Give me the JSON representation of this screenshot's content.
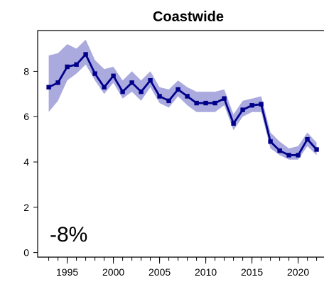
{
  "chart_data": {
    "type": "line",
    "title": "Coastwide",
    "xlabel": "",
    "ylabel": "",
    "annotation": "-8%",
    "xlim": [
      1991.8,
      2022.8
    ],
    "ylim": [
      -0.2,
      9.8
    ],
    "x_ticks": [
      1995,
      2000,
      2005,
      2010,
      2015,
      2020
    ],
    "x_minor_ticks": [
      1993,
      1994,
      1995,
      1996,
      1997,
      1998,
      1999,
      2000,
      2001,
      2002,
      2003,
      2004,
      2005,
      2006,
      2007,
      2008,
      2009,
      2010,
      2011,
      2012,
      2013,
      2014,
      2015,
      2016,
      2017,
      2018,
      2019,
      2020,
      2021,
      2022
    ],
    "y_ticks": [
      0,
      2,
      4,
      6,
      8
    ],
    "grid": false,
    "legend": "none",
    "colors": {
      "line": "#00008b",
      "band": "#aaaade"
    },
    "series": [
      {
        "x": [
          1993,
          1994,
          1995,
          1996,
          1997,
          1998,
          1999,
          2000,
          2001,
          2002,
          2003,
          2004,
          2005,
          2006,
          2007,
          2008,
          2009,
          2010,
          2011,
          2012,
          2013,
          2014,
          2015,
          2016,
          2017,
          2018,
          2019,
          2020,
          2021,
          2022
        ],
        "values": [
          7.3,
          7.5,
          8.2,
          8.3,
          8.75,
          7.9,
          7.3,
          7.8,
          7.1,
          7.5,
          7.1,
          7.6,
          6.9,
          6.7,
          7.2,
          6.9,
          6.6,
          6.6,
          6.6,
          6.8,
          5.7,
          6.3,
          6.5,
          6.55,
          4.9,
          4.5,
          4.3,
          4.3,
          5.0,
          4.55
        ],
        "lower": [
          6.2,
          6.7,
          7.6,
          7.9,
          8.3,
          7.6,
          7.0,
          7.5,
          6.8,
          7.1,
          6.7,
          7.3,
          6.6,
          6.4,
          6.9,
          6.5,
          6.2,
          6.2,
          6.2,
          6.5,
          5.4,
          6.0,
          6.2,
          6.2,
          4.6,
          4.3,
          4.1,
          4.1,
          4.7,
          4.3
        ],
        "upper": [
          8.7,
          8.8,
          9.2,
          9.0,
          9.4,
          8.5,
          8.1,
          8.2,
          7.6,
          8.0,
          7.6,
          8.0,
          7.3,
          7.2,
          7.6,
          7.3,
          7.1,
          7.1,
          7.1,
          7.2,
          6.1,
          6.7,
          6.8,
          6.9,
          5.3,
          4.9,
          4.6,
          4.7,
          5.3,
          4.85
        ]
      }
    ]
  }
}
